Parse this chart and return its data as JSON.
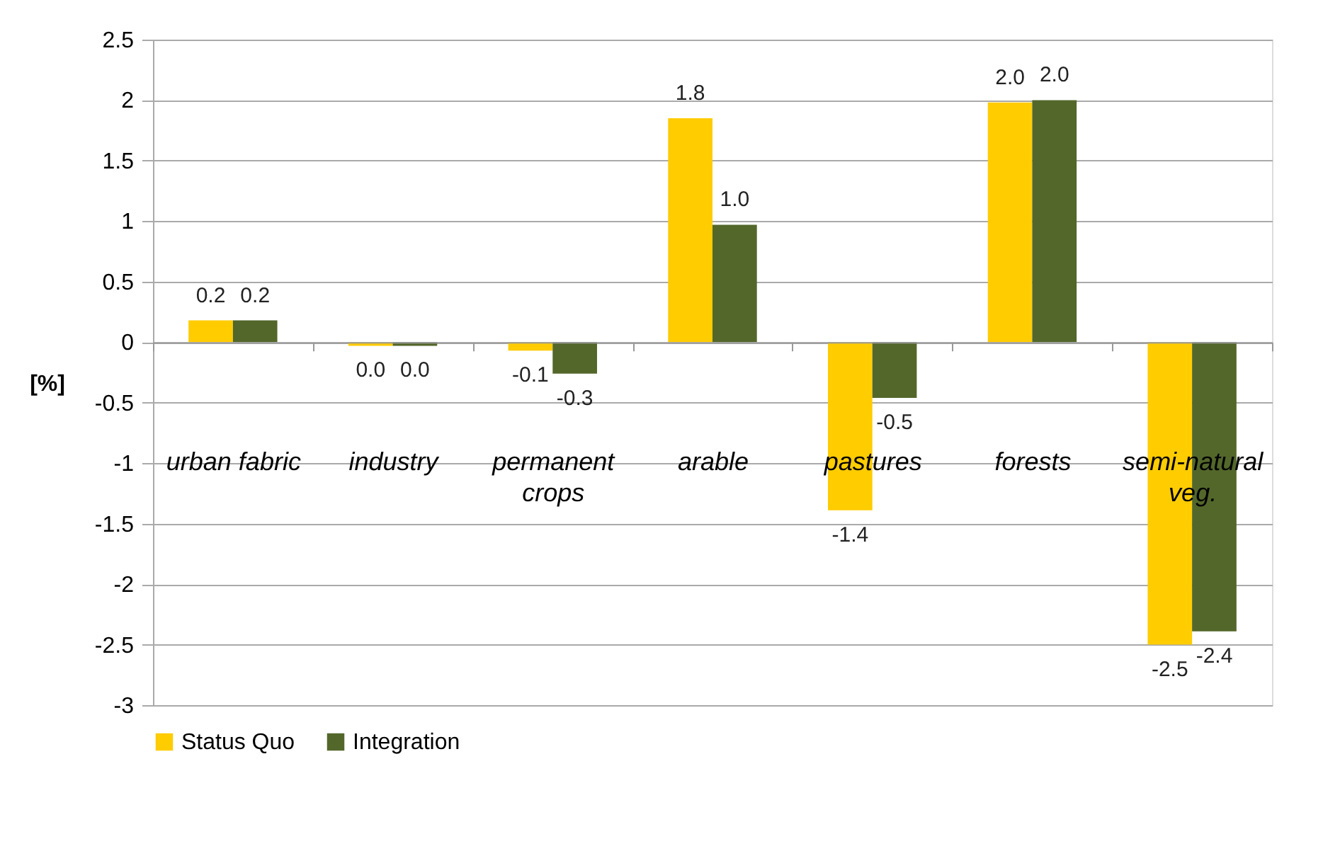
{
  "chart_data": {
    "type": "bar",
    "ylabel": "[%]",
    "categories": [
      "urban fabric",
      "industry",
      "permanent crops",
      "arable",
      "pastures",
      "forests",
      "semi-natural veg."
    ],
    "series": [
      {
        "name": "Status Quo",
        "color": "#ffcc00",
        "values": [
          0.18,
          -0.03,
          -0.07,
          1.85,
          -1.39,
          1.98,
          -2.5
        ],
        "value_labels": [
          "0.2",
          "0.0",
          "-0.1",
          "1.8",
          "-1.4",
          "2.0",
          "-2.5"
        ]
      },
      {
        "name": "Integration",
        "color": "#53672a",
        "values": [
          0.18,
          -0.03,
          -0.26,
          0.97,
          -0.46,
          2.0,
          -2.39
        ],
        "value_labels": [
          "0.2",
          "0.0",
          "-0.3",
          "1.0",
          "-0.5",
          "2.0",
          "-2.4"
        ]
      }
    ],
    "ylim": [
      -3,
      2.5
    ],
    "yticks": [
      -3,
      -2.5,
      -2,
      -1.5,
      -1,
      -0.5,
      0,
      0.5,
      1,
      1.5,
      2,
      2.5
    ],
    "grid": "y",
    "legend": "bottom"
  }
}
